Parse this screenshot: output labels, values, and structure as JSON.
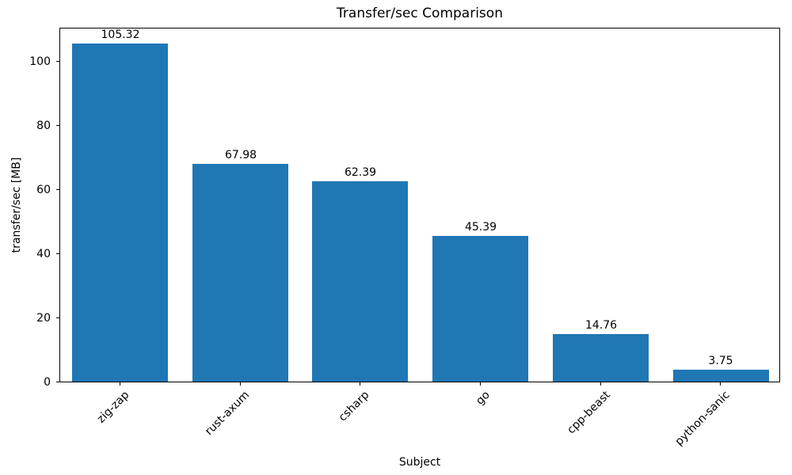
{
  "chart_data": {
    "type": "bar",
    "title": "Transfer/sec Comparison",
    "xlabel": "Subject",
    "ylabel": "transfer/sec [MB]",
    "categories": [
      "zig-zap",
      "rust-axum",
      "csharp",
      "go",
      "cpp-beast",
      "python-sanic"
    ],
    "values": [
      105.32,
      67.98,
      62.39,
      45.39,
      14.76,
      3.75
    ],
    "value_labels": [
      "105.32",
      "67.98",
      "62.39",
      "45.39",
      "14.76",
      "3.75"
    ],
    "yticks": [
      0,
      20,
      40,
      60,
      80,
      100
    ],
    "ylim": [
      0,
      110.59
    ],
    "bar_color": "#1f77b4",
    "grid": false,
    "legend_position": "none",
    "bar_width_fraction": 0.8
  }
}
